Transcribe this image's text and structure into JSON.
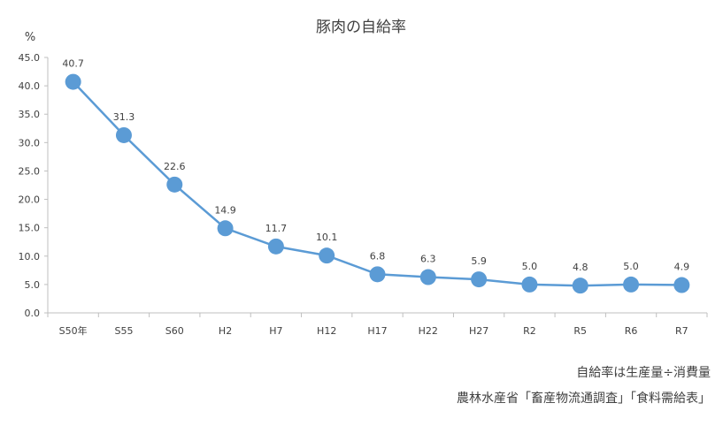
{
  "chart_data": {
    "type": "line",
    "title": "豚肉の自給率",
    "ylabel": "%",
    "xlabel": "",
    "categories": [
      "S50年",
      "S55",
      "S60",
      "H2",
      "H7",
      "H12",
      "H17",
      "H22",
      "H27",
      "R2",
      "R5",
      "R6",
      "R7"
    ],
    "values": [
      40.7,
      31.3,
      22.6,
      14.9,
      11.7,
      10.1,
      6.8,
      6.3,
      5.9,
      5.0,
      4.8,
      5.0,
      4.9
    ],
    "data_labels": [
      "40.7",
      "31.3",
      "22.6",
      "14.9",
      "11.7",
      "10.1",
      "6.8",
      "6.3",
      "5.9",
      "5.0",
      "4.8",
      "5.0",
      "4.9"
    ],
    "ylim": [
      0,
      45
    ],
    "yticks": [
      "0.0",
      "5.0",
      "10.0",
      "15.0",
      "20.0",
      "25.0",
      "30.0",
      "35.0",
      "40.0",
      "45.0"
    ],
    "grid": false,
    "legend": "none",
    "color": "#5b9bd5"
  },
  "notes": {
    "formula": "自給率は生産量÷消費量",
    "source": "農林水産省「畜産物流通調査」「食料需給表」"
  }
}
